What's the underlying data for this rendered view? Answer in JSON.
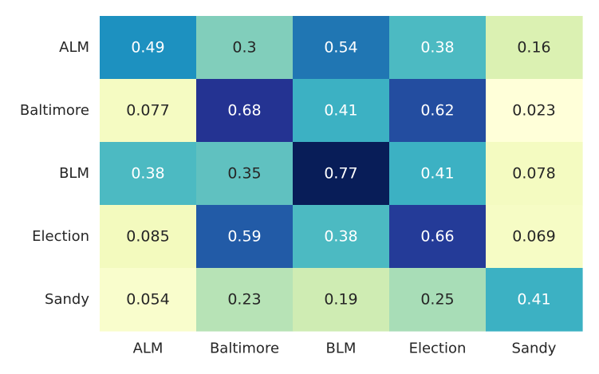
{
  "chart_data": {
    "type": "heatmap",
    "title": "",
    "xlabel": "",
    "ylabel": "",
    "x_categories": [
      "ALM",
      "Baltimore",
      "BLM",
      "Election",
      "Sandy"
    ],
    "y_categories": [
      "ALM",
      "Baltimore",
      "BLM",
      "Election",
      "Sandy"
    ],
    "values": [
      [
        0.49,
        0.3,
        0.54,
        0.38,
        0.16
      ],
      [
        0.077,
        0.68,
        0.41,
        0.62,
        0.023
      ],
      [
        0.38,
        0.35,
        0.77,
        0.41,
        0.078
      ],
      [
        0.085,
        0.59,
        0.38,
        0.66,
        0.069
      ],
      [
        0.054,
        0.23,
        0.19,
        0.25,
        0.41
      ]
    ],
    "cell_labels": [
      [
        "0.49",
        "0.3",
        "0.54",
        "0.38",
        "0.16"
      ],
      [
        "0.077",
        "0.68",
        "0.41",
        "0.62",
        "0.023"
      ],
      [
        "0.38",
        "0.35",
        "0.77",
        "0.41",
        "0.078"
      ],
      [
        "0.085",
        "0.59",
        "0.38",
        "0.66",
        "0.069"
      ],
      [
        "0.054",
        "0.23",
        "0.19",
        "0.25",
        "0.41"
      ]
    ],
    "colormap": "YlGnBu",
    "vmin": 0.023,
    "vmax": 0.77,
    "colorbar": false,
    "grid": false,
    "legend": "none"
  },
  "colors": {
    "label_text": "#262626",
    "annotation_dark": "#262626",
    "annotation_light": "#ffffff",
    "colormap_stops": [
      "#ffffd9",
      "#edf8b1",
      "#c7e9b4",
      "#7fcdbb",
      "#41b6c4",
      "#1d91c0",
      "#225ea8",
      "#253494",
      "#081d58"
    ]
  }
}
